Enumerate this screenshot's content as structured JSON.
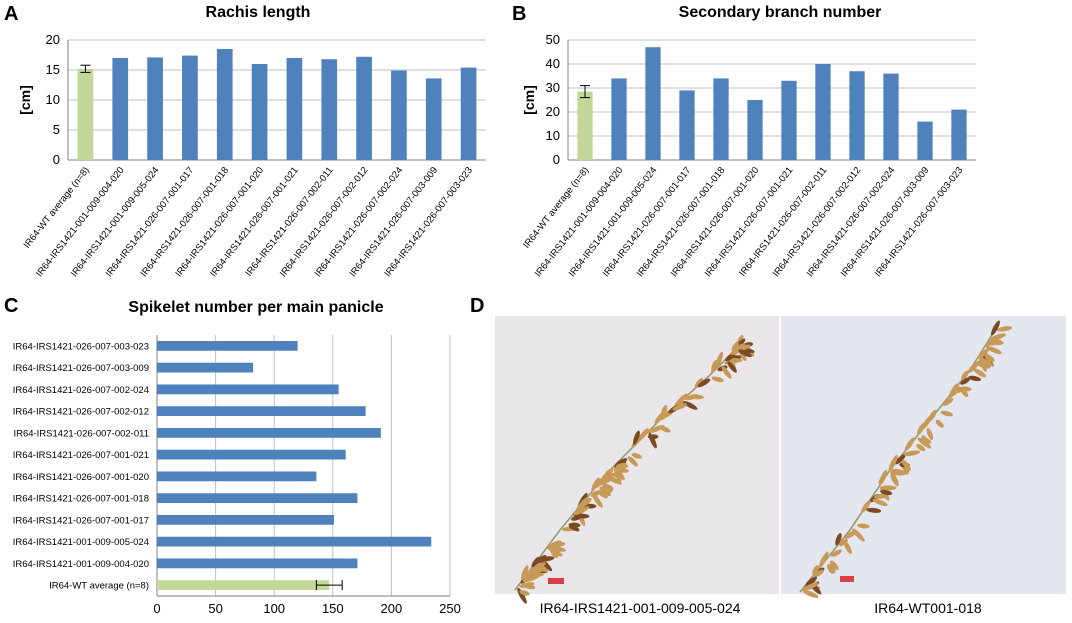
{
  "colors": {
    "bar": "#4f81bd",
    "wt_bar": "#c4d79b",
    "grid": "#bfbfbf",
    "axis": "#808080",
    "photo_bg_left": "#e9e7ea",
    "photo_bg_right": "#e4e6f0",
    "scale_bar": "#d8404a",
    "panicle": "#b58a4a"
  },
  "panels": {
    "a": "A",
    "b": "B",
    "c": "C",
    "d": "D"
  },
  "chart_data": [
    {
      "id": "rachis",
      "type": "bar",
      "title": "Rachis length",
      "ylabel": "[cm]",
      "xlabel": "",
      "ylim": [
        0,
        20
      ],
      "yticks": [
        0,
        5,
        10,
        15,
        20
      ],
      "grid": true,
      "categories": [
        "IR64-WT average (n=8)",
        "IR64-IRS1421-001-009-004-020",
        "IR64-IRS1421-001-009-005-024",
        "IR64-IRS1421-026-007-001-017",
        "IR64-IRS1421-026-007-001-018",
        "IR64-IRS1421-026-007-001-020",
        "IR64-IRS1421-026-007-001-021",
        "IR64-IRS1421-026-007-002-011",
        "IR64-IRS1421-026-007-002-012",
        "IR64-IRS1421-026-007-002-024",
        "IR64-IRS1421-026-007-003-009",
        "IR64-IRS1421-026-007-003-023"
      ],
      "values": [
        15.2,
        17.0,
        17.1,
        17.4,
        18.5,
        16.0,
        17.0,
        16.8,
        17.2,
        14.9,
        13.6,
        15.4
      ],
      "error": [
        0.6,
        null,
        null,
        null,
        null,
        null,
        null,
        null,
        null,
        null,
        null,
        null
      ]
    },
    {
      "id": "branch",
      "type": "bar",
      "title": "Secondary branch number",
      "ylabel": "[cm]",
      "xlabel": "",
      "ylim": [
        0,
        50
      ],
      "yticks": [
        0,
        10,
        20,
        30,
        40,
        50
      ],
      "grid": true,
      "categories": [
        "IR64-WT average (n=8)",
        "IR64-IRS1421-001-009-004-020",
        "IR64-IRS1421-001-009-005-024",
        "IR64-IRS1421-026-007-001-017",
        "IR64-IRS1421-026-007-001-018",
        "IR64-IRS1421-026-007-001-020",
        "IR64-IRS1421-026-007-001-021",
        "IR64-IRS1421-026-007-002-011",
        "IR64-IRS1421-026-007-002-012",
        "IR64-IRS1421-026-007-002-024",
        "IR64-IRS1421-026-007-003-009",
        "IR64-IRS1421-026-007-003-023"
      ],
      "values": [
        28.5,
        34,
        47,
        29,
        34,
        25,
        33,
        40,
        37,
        36,
        16,
        21
      ],
      "error": [
        2.5,
        null,
        null,
        null,
        null,
        null,
        null,
        null,
        null,
        null,
        null,
        null
      ]
    },
    {
      "id": "spikelet",
      "type": "bar",
      "orientation": "horizontal",
      "title": "Spikelet number per main panicle",
      "xlabel": "",
      "ylabel": "",
      "xlim": [
        0,
        250
      ],
      "xticks": [
        0,
        50,
        100,
        150,
        200,
        250
      ],
      "grid": true,
      "categories": [
        "IR64-IRS1421-026-007-003-023",
        "IR64-IRS1421-026-007-003-009",
        "IR64-IRS1421-026-007-002-024",
        "IR64-IRS1421-026-007-002-012",
        "IR64-IRS1421-026-007-002-011",
        "IR64-IRS1421-026-007-001-021",
        "IR64-IRS1421-026-007-001-020",
        "IR64-IRS1421-026-007-001-018",
        "IR64-IRS1421-026-007-001-017",
        "IR64-IRS1421-001-009-005-024",
        "IR64-IRS1421-001-009-004-020",
        "IR64-WT average (n=8)"
      ],
      "values": [
        120,
        82,
        155,
        178,
        191,
        161,
        136,
        171,
        151,
        234,
        171,
        147
      ],
      "error": [
        null,
        null,
        null,
        null,
        null,
        null,
        null,
        null,
        null,
        null,
        null,
        11
      ]
    }
  ],
  "photos": {
    "left_caption": "IR64-IRS1421-001-009-005-024",
    "right_caption": "IR64-WT001-018"
  }
}
